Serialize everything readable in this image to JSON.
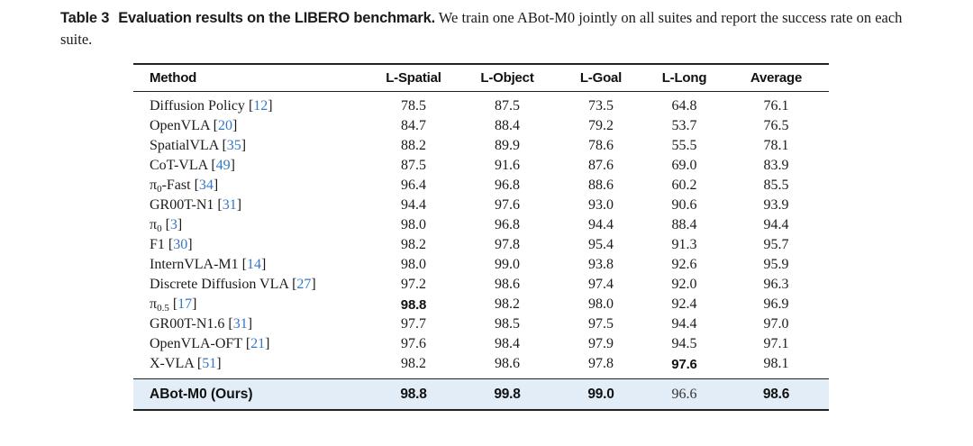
{
  "caption": {
    "label": "Table 3",
    "title": "Evaluation results on the LIBERO benchmark.",
    "description": "We train one ABot-M0 jointly on all suites and report the success rate on each suite."
  },
  "colors": {
    "citation_blue": "#3478c6",
    "highlight_background": "#e2edf8",
    "rule_color": "#222222"
  },
  "chart_data": {
    "type": "table",
    "title": "Evaluation results on the LIBERO benchmark",
    "columns": [
      "Method",
      "L-Spatial",
      "L-Object",
      "L-Goal",
      "L-Long",
      "Average"
    ],
    "rows": [
      {
        "pre": "Diffusion Policy",
        "sub": "",
        "post": "",
        "cite": "12",
        "values": [
          "78.5",
          "87.5",
          "73.5",
          "64.8",
          "76.1"
        ],
        "bold": [],
        "highlight": false
      },
      {
        "pre": "OpenVLA",
        "sub": "",
        "post": "",
        "cite": "20",
        "values": [
          "84.7",
          "88.4",
          "79.2",
          "53.7",
          "76.5"
        ],
        "bold": [],
        "highlight": false
      },
      {
        "pre": "SpatialVLA",
        "sub": "",
        "post": "",
        "cite": "35",
        "values": [
          "88.2",
          "89.9",
          "78.6",
          "55.5",
          "78.1"
        ],
        "bold": [],
        "highlight": false
      },
      {
        "pre": "CoT-VLA",
        "sub": "",
        "post": "",
        "cite": "49",
        "values": [
          "87.5",
          "91.6",
          "87.6",
          "69.0",
          "83.9"
        ],
        "bold": [],
        "highlight": false
      },
      {
        "pre": "π",
        "sub": "0",
        "post": "-Fast",
        "cite": "34",
        "values": [
          "96.4",
          "96.8",
          "88.6",
          "60.2",
          "85.5"
        ],
        "bold": [],
        "highlight": false
      },
      {
        "pre": "GR00T-N1",
        "sub": "",
        "post": "",
        "cite": "31",
        "values": [
          "94.4",
          "97.6",
          "93.0",
          "90.6",
          "93.9"
        ],
        "bold": [],
        "highlight": false
      },
      {
        "pre": "π",
        "sub": "0",
        "post": "",
        "cite": "3",
        "values": [
          "98.0",
          "96.8",
          "94.4",
          "88.4",
          "94.4"
        ],
        "bold": [],
        "highlight": false
      },
      {
        "pre": "F1",
        "sub": "",
        "post": "",
        "cite": "30",
        "values": [
          "98.2",
          "97.8",
          "95.4",
          "91.3",
          "95.7"
        ],
        "bold": [],
        "highlight": false
      },
      {
        "pre": "InternVLA-M1",
        "sub": "",
        "post": "",
        "cite": "14",
        "values": [
          "98.0",
          "99.0",
          "93.8",
          "92.6",
          "95.9"
        ],
        "bold": [],
        "highlight": false
      },
      {
        "pre": "Discrete Diffusion VLA",
        "sub": "",
        "post": "",
        "cite": "27",
        "values": [
          "97.2",
          "98.6",
          "97.4",
          "92.0",
          "96.3"
        ],
        "bold": [],
        "highlight": false
      },
      {
        "pre": "π",
        "sub": "0.5",
        "post": "",
        "cite": "17",
        "values": [
          "98.8",
          "98.2",
          "98.0",
          "92.4",
          "96.9"
        ],
        "bold": [
          0
        ],
        "highlight": false
      },
      {
        "pre": "GR00T-N1.6",
        "sub": "",
        "post": "",
        "cite": "31",
        "values": [
          "97.7",
          "98.5",
          "97.5",
          "94.4",
          "97.0"
        ],
        "bold": [],
        "highlight": false
      },
      {
        "pre": "OpenVLA-OFT",
        "sub": "",
        "post": "",
        "cite": "21",
        "values": [
          "97.6",
          "98.4",
          "97.9",
          "94.5",
          "97.1"
        ],
        "bold": [],
        "highlight": false
      },
      {
        "pre": "X-VLA",
        "sub": "",
        "post": "",
        "cite": "51",
        "values": [
          "98.2",
          "98.6",
          "97.8",
          "97.6",
          "98.1"
        ],
        "bold": [
          3
        ],
        "highlight": false
      },
      {
        "pre": "ABot-M0 (Ours)",
        "sub": "",
        "post": "",
        "cite": "",
        "values": [
          "98.8",
          "99.8",
          "99.0",
          "96.6",
          "98.6"
        ],
        "bold": [
          0,
          1,
          2,
          4
        ],
        "highlight": true
      }
    ]
  }
}
